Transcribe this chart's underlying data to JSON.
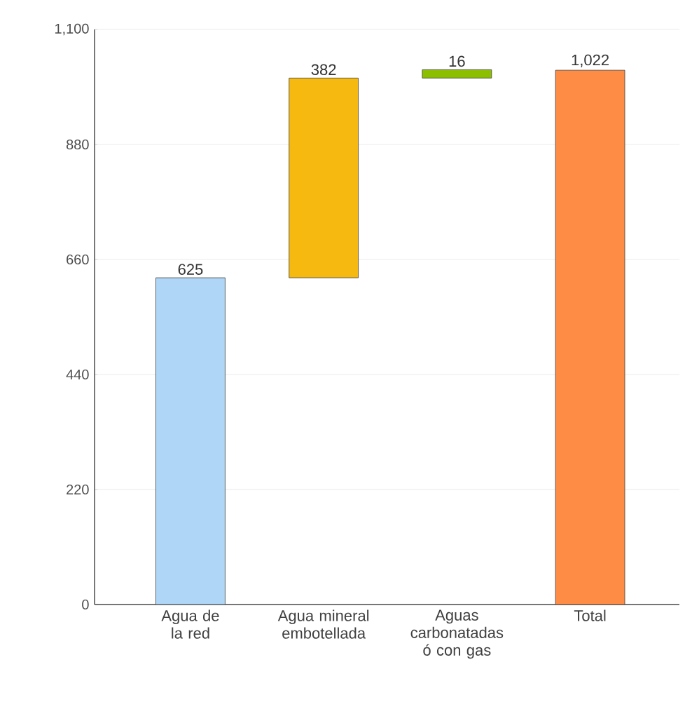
{
  "chart_data": {
    "type": "bar",
    "categories": [
      "Agua de la red",
      "Agua mineral embotellada",
      "Aguas carbonatadas ó con gas",
      "Total"
    ],
    "values": [
      625,
      382,
      16,
      1022
    ],
    "base": [
      0,
      625,
      1007,
      0
    ],
    "colors": [
      "#afd6f7",
      "#f5b90f",
      "#8cbf00",
      "#ff8c45"
    ],
    "value_labels": [
      "625",
      "382",
      "16",
      "1,022"
    ],
    "ylim": [
      0,
      1100
    ],
    "yticks": [
      0,
      220,
      440,
      660,
      880,
      {
        "value": 1100,
        "label": "1,100"
      }
    ],
    "grid": "y"
  }
}
